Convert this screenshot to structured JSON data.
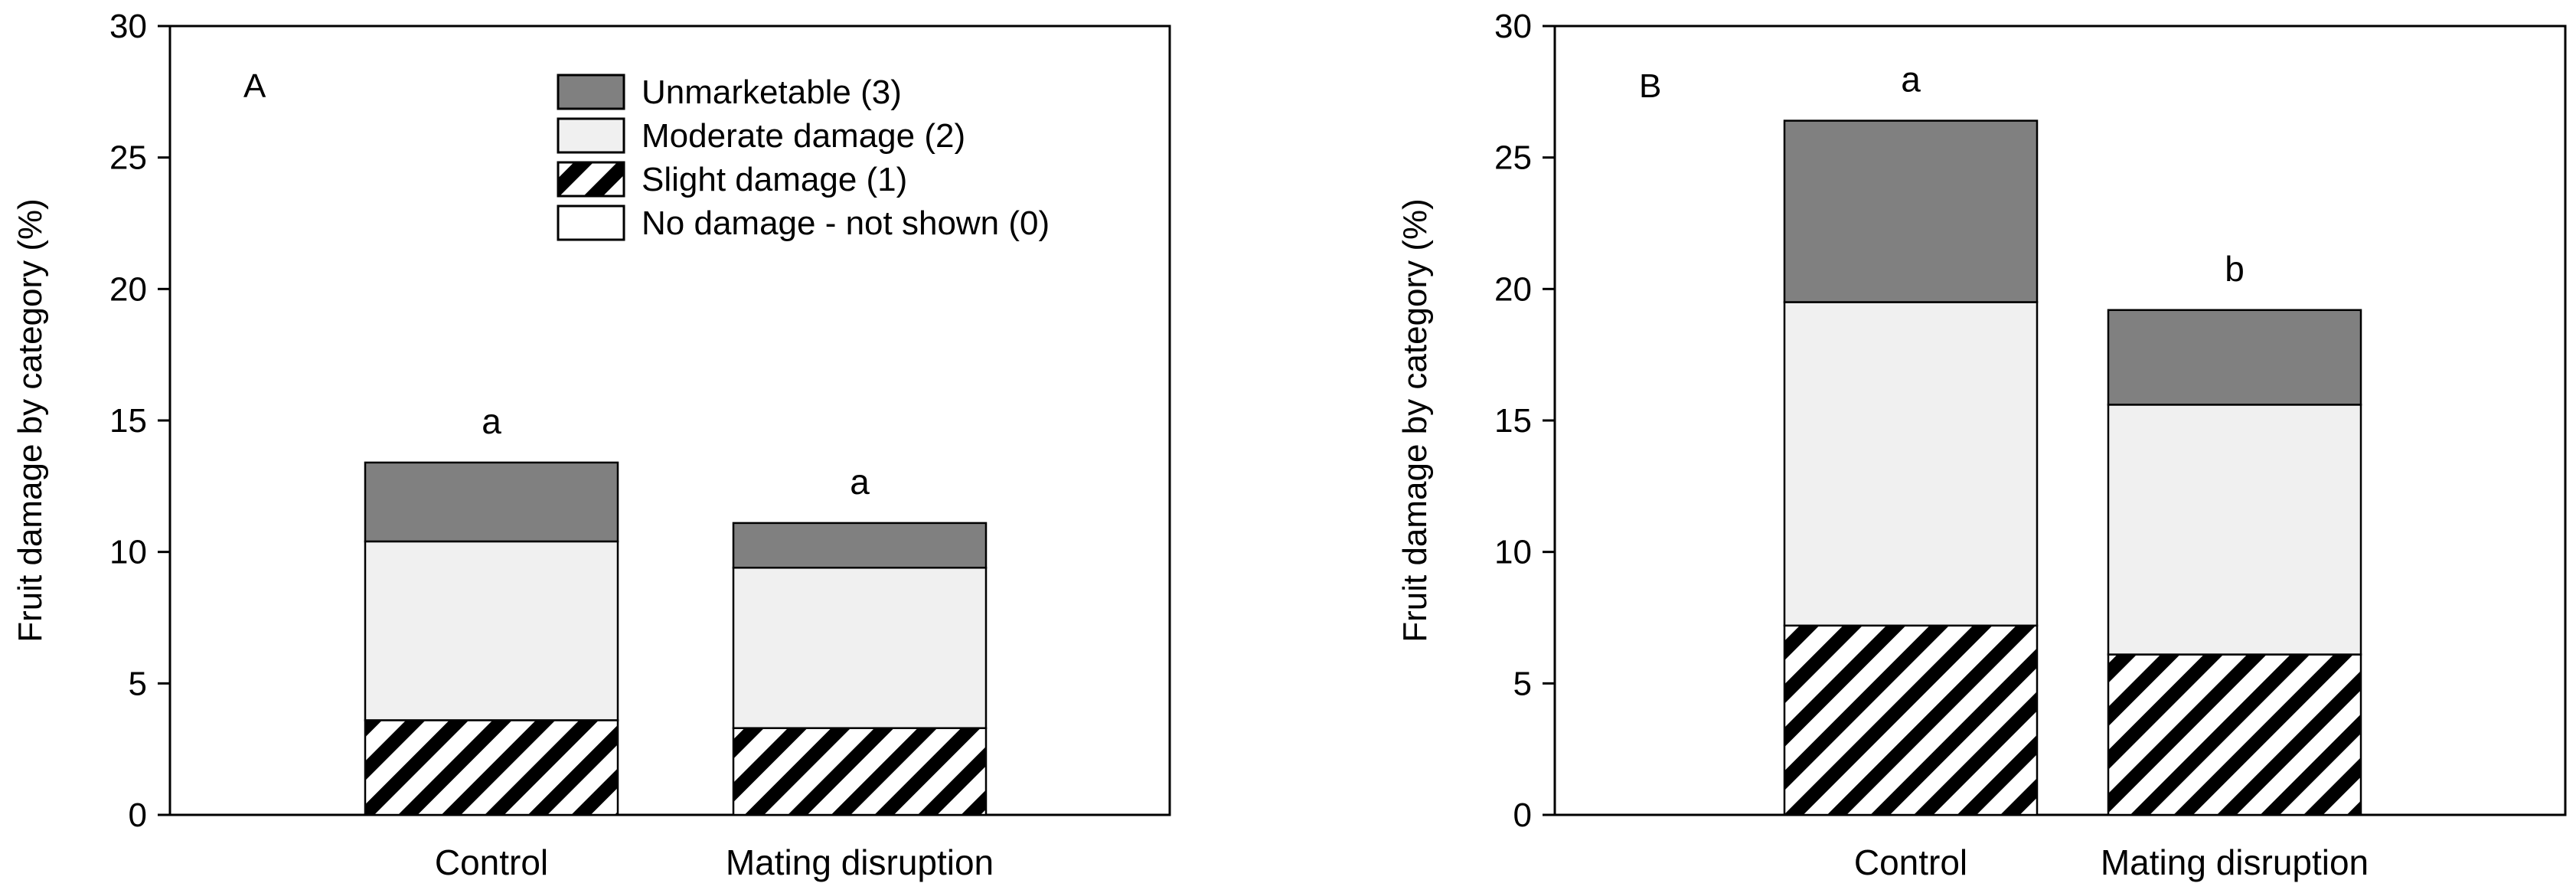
{
  "colors": {
    "unmarketable": "#808080",
    "moderate": "#f0f0f0",
    "slight_fg": "#000000",
    "slight_bg": "#ffffff",
    "none": "#ffffff"
  },
  "legend": [
    {
      "key": "unmarketable",
      "label": "Unmarketable (3)"
    },
    {
      "key": "moderate",
      "label": "Moderate damage (2)"
    },
    {
      "key": "slight",
      "label": "Slight damage (1)"
    },
    {
      "key": "none",
      "label": "No damage - not shown (0)"
    }
  ],
  "chart_data": [
    {
      "type": "bar",
      "stacked": true,
      "panel_label": "A",
      "ylabel": "Fruit damage by category (%)",
      "ylim": [
        0,
        30
      ],
      "yticks": [
        0,
        5,
        10,
        15,
        20,
        25,
        30
      ],
      "categories": [
        "Control",
        "Mating disruption"
      ],
      "series": [
        {
          "name": "Slight damage (1)",
          "key": "slight",
          "values": [
            3.6,
            3.3
          ]
        },
        {
          "name": "Moderate damage (2)",
          "key": "moderate",
          "values": [
            6.8,
            6.1
          ]
        },
        {
          "name": "Unmarketable (3)",
          "key": "unmarketable",
          "values": [
            3.0,
            1.7
          ]
        }
      ],
      "annotations": [
        "a",
        "a"
      ],
      "legend_position": "top-right"
    },
    {
      "type": "bar",
      "stacked": true,
      "panel_label": "B",
      "ylabel": "Fruit damage by category (%)",
      "ylim": [
        0,
        30
      ],
      "yticks": [
        0,
        5,
        10,
        15,
        20,
        25,
        30
      ],
      "categories": [
        "Control",
        "Mating disruption"
      ],
      "series": [
        {
          "name": "Slight damage (1)",
          "key": "slight",
          "values": [
            7.2,
            6.1
          ]
        },
        {
          "name": "Moderate damage (2)",
          "key": "moderate",
          "values": [
            12.3,
            9.5
          ]
        },
        {
          "name": "Unmarketable (3)",
          "key": "unmarketable",
          "values": [
            6.9,
            3.6
          ]
        }
      ],
      "annotations": [
        "a",
        "b"
      ]
    }
  ]
}
